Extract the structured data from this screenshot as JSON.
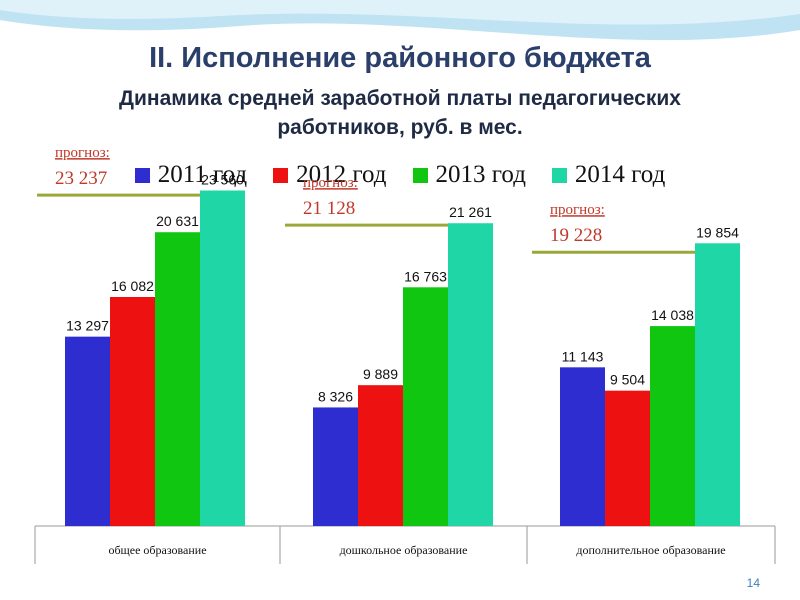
{
  "title": "II. Исполнение районного бюджета",
  "subtitle_line1": "Динамика средней заработной платы педагогических",
  "subtitle_line2": "работников, руб. в мес.",
  "page_number": "14",
  "colors": {
    "2011": "#2e2ed0",
    "2012": "#ee1111",
    "2013": "#11c611",
    "2014": "#1fd6a6",
    "forecast_line": "#9aa83a",
    "forecast_text": "#c0392b",
    "header_wave": "#bfe3f2"
  },
  "chart_data": {
    "type": "bar",
    "categories": [
      "общее образование",
      "дошкольное образование",
      "дополнительное образование"
    ],
    "series": [
      {
        "name": "2011 год",
        "values": [
          13297,
          8326,
          11143
        ],
        "labels": [
          "13 297",
          "8 326",
          "11 143"
        ]
      },
      {
        "name": "2012 год",
        "values": [
          16082,
          9889,
          9504
        ],
        "labels": [
          "16 082",
          "9 889",
          "9 504"
        ]
      },
      {
        "name": "2013 год",
        "values": [
          20631,
          16763,
          14038
        ],
        "labels": [
          "20 631",
          "16 763",
          "14 038"
        ]
      },
      {
        "name": "2014 год",
        "values": [
          23560,
          21261,
          19854
        ],
        "labels": [
          "23 560",
          "21 261",
          "19 854"
        ]
      }
    ],
    "forecasts": [
      {
        "label": "прогноз:",
        "value": 23237,
        "value_label": "23 237"
      },
      {
        "label": "прогноз:",
        "value": 21128,
        "value_label": "21 128"
      },
      {
        "label": "прогноз:",
        "value": 19228,
        "value_label": "19 228"
      }
    ],
    "ylim": [
      0,
      25000
    ],
    "grid": false,
    "legend": "top"
  }
}
